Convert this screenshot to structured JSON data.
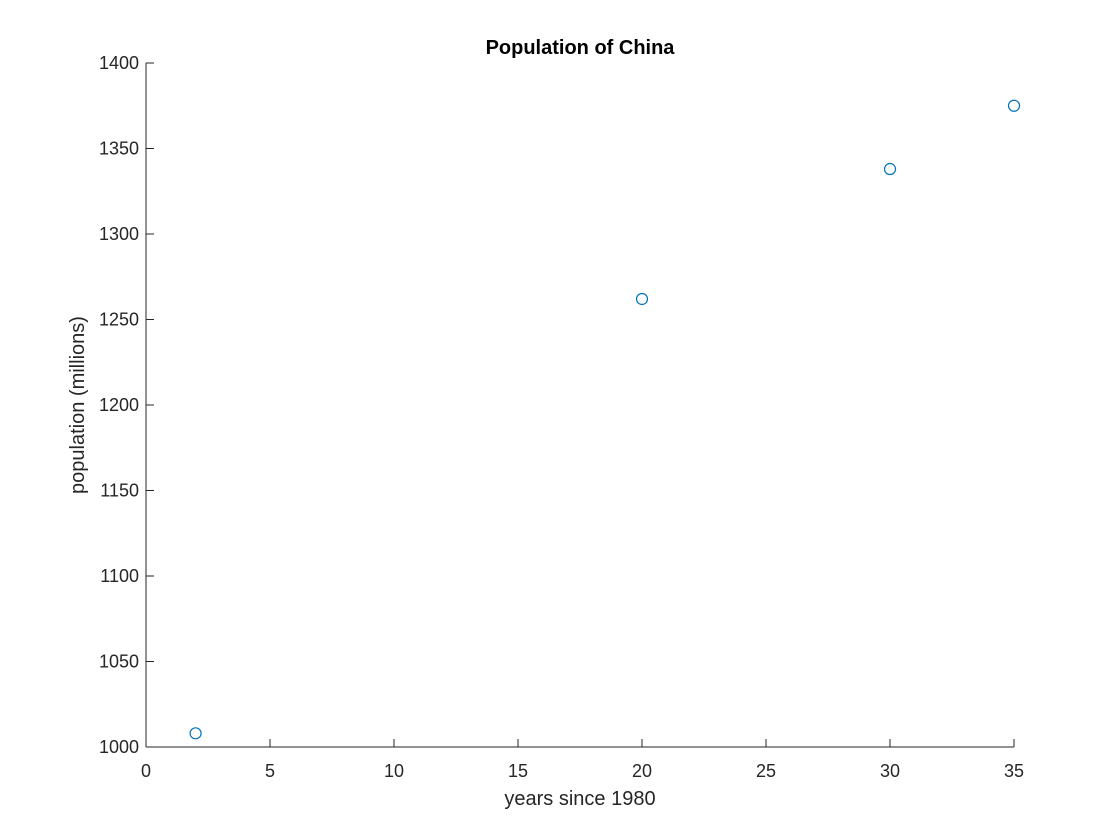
{
  "chart_data": {
    "type": "scatter",
    "title": "Population of China",
    "xlabel": "years since 1980",
    "ylabel": "population (millions)",
    "xlim": [
      0,
      35
    ],
    "ylim": [
      1000,
      1400
    ],
    "xticks": [
      0,
      5,
      10,
      15,
      20,
      25,
      30,
      35
    ],
    "yticks": [
      1000,
      1050,
      1100,
      1150,
      1200,
      1250,
      1300,
      1350,
      1400
    ],
    "grid": false,
    "marker": "circle",
    "color": "#0072BD",
    "points": [
      {
        "x": 2,
        "y": 1008
      },
      {
        "x": 20,
        "y": 1262
      },
      {
        "x": 30,
        "y": 1338
      },
      {
        "x": 35,
        "y": 1375
      }
    ]
  }
}
